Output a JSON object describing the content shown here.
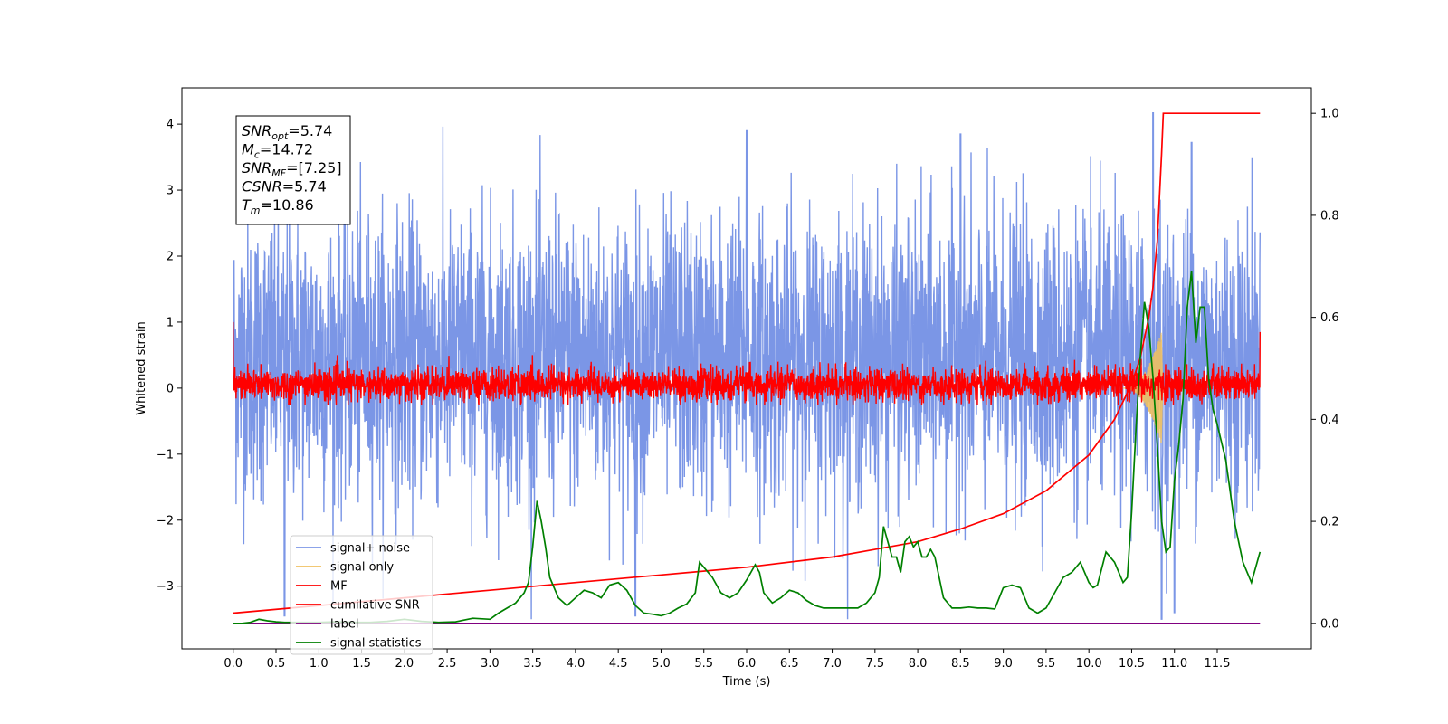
{
  "chart_data": {
    "type": "line",
    "title": "",
    "xlabel": "Time (s)",
    "ylabel": "Whitened strain",
    "xlim": [
      -0.6,
      12.6
    ],
    "ylim": [
      -3.95,
      4.55
    ],
    "y2lim": [
      -0.05,
      1.05
    ],
    "x_ticks": [
      0.0,
      0.5,
      1.0,
      1.5,
      2.0,
      2.5,
      3.0,
      3.5,
      4.0,
      4.5,
      5.0,
      5.5,
      6.0,
      6.5,
      7.0,
      7.5,
      8.0,
      8.5,
      9.0,
      9.5,
      10.0,
      10.5,
      11.0,
      11.5
    ],
    "x_tick_labels": [
      "0.0",
      "0.5",
      "1.0",
      "1.5",
      "2.0",
      "2.5",
      "3.0",
      "3.5",
      "4.0",
      "4.5",
      "5.0",
      "5.5",
      "6.0",
      "6.5",
      "7.0",
      "7.5",
      "8.0",
      "8.5",
      "9.0",
      "9.5",
      "10.0",
      "10.5",
      "11.0",
      "11.5"
    ],
    "y_ticks": [
      -3,
      -2,
      -1,
      0,
      1,
      2,
      3,
      4
    ],
    "y_tick_labels": [
      "−3",
      "−2",
      "−1",
      "0",
      "1",
      "2",
      "3",
      "4"
    ],
    "y2_ticks": [
      0.0,
      0.2,
      0.4,
      0.6,
      0.8,
      1.0
    ],
    "y2_tick_labels": [
      "0.0",
      "0.2",
      "0.4",
      "0.6",
      "0.8",
      "1.0"
    ],
    "grid": false,
    "legend_position": "lower-left",
    "info_box": {
      "lines": [
        {
          "sym": "SNR",
          "sub": "opt",
          "val": "=5.74"
        },
        {
          "sym": "M",
          "sub": "c",
          "val": "=14.72"
        },
        {
          "sym": "SNR",
          "sub": "MF",
          "val": "=[7.25]"
        },
        {
          "sym": "CSNR",
          "sub": "",
          "val": "=5.74"
        },
        {
          "sym": "T",
          "sub": "m",
          "val": "=10.86"
        }
      ]
    },
    "series": [
      {
        "name": "signal+ noise",
        "color": "#7b96e6",
        "axis": "left",
        "style": "noise",
        "x_range": [
          0.0,
          12.0
        ],
        "amplitude_envelope": [
          -3.5,
          4.17
        ],
        "typical_range": [
          -1.5,
          2.4
        ],
        "peaks": [
          [
            6.0,
            3.9
          ],
          [
            8.5,
            3.85
          ],
          [
            10.75,
            4.17
          ],
          [
            11.2,
            3.72
          ],
          [
            4.7,
            -3.45
          ],
          [
            10.85,
            -3.5
          ],
          [
            11.0,
            -3.4
          ],
          [
            0.6,
            -3.45
          ]
        ]
      },
      {
        "name": "signal only",
        "color": "#f0c060",
        "axis": "left",
        "style": "chirp",
        "x_range": [
          10.4,
          10.87
        ],
        "peak_amplitude": 0.95
      },
      {
        "name": "MF",
        "color": "#ff0000",
        "axis": "left",
        "style": "noise",
        "x_range": [
          0.0,
          12.0
        ],
        "typical_range": [
          -0.2,
          0.3
        ],
        "start_value": 1.0,
        "end_value": 0.85
      },
      {
        "name": "cumilative SNR",
        "color": "#ff0000",
        "axis": "right",
        "style": "line",
        "x": [
          0.0,
          1.0,
          2.0,
          3.0,
          4.0,
          5.0,
          6.0,
          7.0,
          7.5,
          8.0,
          8.5,
          9.0,
          9.5,
          10.0,
          10.3,
          10.5,
          10.6,
          10.7,
          10.75,
          10.8,
          10.85,
          10.87,
          10.9,
          12.0
        ],
        "values": [
          0.02,
          0.035,
          0.05,
          0.065,
          0.08,
          0.095,
          0.11,
          0.13,
          0.145,
          0.16,
          0.185,
          0.215,
          0.26,
          0.33,
          0.4,
          0.47,
          0.52,
          0.6,
          0.66,
          0.75,
          0.92,
          1.0,
          1.0,
          1.0
        ]
      },
      {
        "name": "label",
        "color": "#800080",
        "axis": "right",
        "style": "line",
        "x": [
          0.0,
          12.0
        ],
        "values": [
          0.0,
          0.0
        ]
      },
      {
        "name": "signal statistics",
        "color": "#008000",
        "axis": "right",
        "style": "line",
        "x": [
          0.0,
          0.1,
          0.2,
          0.3,
          0.4,
          0.5,
          0.6,
          0.8,
          1.0,
          1.2,
          1.4,
          1.6,
          1.8,
          2.0,
          2.2,
          2.4,
          2.6,
          2.8,
          3.0,
          3.1,
          3.2,
          3.3,
          3.4,
          3.45,
          3.5,
          3.55,
          3.6,
          3.65,
          3.7,
          3.8,
          3.9,
          4.0,
          4.1,
          4.2,
          4.3,
          4.4,
          4.5,
          4.6,
          4.7,
          4.8,
          4.9,
          5.0,
          5.1,
          5.2,
          5.3,
          5.4,
          5.45,
          5.5,
          5.6,
          5.7,
          5.8,
          5.9,
          6.0,
          6.05,
          6.1,
          6.15,
          6.2,
          6.3,
          6.4,
          6.5,
          6.6,
          6.7,
          6.8,
          6.9,
          7.0,
          7.1,
          7.2,
          7.3,
          7.4,
          7.5,
          7.55,
          7.6,
          7.65,
          7.7,
          7.75,
          7.8,
          7.85,
          7.9,
          7.95,
          8.0,
          8.05,
          8.1,
          8.15,
          8.2,
          8.3,
          8.4,
          8.5,
          8.6,
          8.7,
          8.8,
          8.9,
          9.0,
          9.1,
          9.2,
          9.3,
          9.4,
          9.5,
          9.6,
          9.7,
          9.8,
          9.9,
          10.0,
          10.05,
          10.1,
          10.2,
          10.3,
          10.4,
          10.45,
          10.5,
          10.55,
          10.6,
          10.65,
          10.7,
          10.75,
          10.8,
          10.85,
          10.9,
          10.95,
          11.0,
          11.05,
          11.1,
          11.15,
          11.2,
          11.25,
          11.3,
          11.35,
          11.4,
          11.45,
          11.5,
          11.6,
          11.7,
          11.8,
          11.9,
          12.0
        ],
        "values": [
          0.0,
          0.0,
          0.002,
          0.008,
          0.005,
          0.003,
          0.002,
          0.002,
          0.002,
          0.003,
          0.002,
          0.002,
          0.004,
          0.008,
          0.004,
          0.002,
          0.003,
          0.01,
          0.008,
          0.02,
          0.03,
          0.04,
          0.06,
          0.08,
          0.15,
          0.24,
          0.2,
          0.15,
          0.09,
          0.05,
          0.035,
          0.05,
          0.065,
          0.06,
          0.05,
          0.075,
          0.08,
          0.065,
          0.035,
          0.02,
          0.018,
          0.015,
          0.02,
          0.03,
          0.038,
          0.06,
          0.12,
          0.11,
          0.09,
          0.06,
          0.05,
          0.06,
          0.085,
          0.1,
          0.115,
          0.1,
          0.06,
          0.04,
          0.05,
          0.065,
          0.06,
          0.045,
          0.035,
          0.03,
          0.03,
          0.03,
          0.03,
          0.03,
          0.04,
          0.06,
          0.09,
          0.19,
          0.16,
          0.13,
          0.13,
          0.1,
          0.16,
          0.17,
          0.15,
          0.16,
          0.13,
          0.13,
          0.145,
          0.13,
          0.05,
          0.03,
          0.03,
          0.032,
          0.03,
          0.03,
          0.028,
          0.07,
          0.075,
          0.07,
          0.03,
          0.02,
          0.03,
          0.06,
          0.09,
          0.1,
          0.12,
          0.08,
          0.07,
          0.075,
          0.14,
          0.12,
          0.08,
          0.09,
          0.22,
          0.38,
          0.52,
          0.63,
          0.58,
          0.48,
          0.35,
          0.2,
          0.14,
          0.15,
          0.28,
          0.35,
          0.44,
          0.62,
          0.69,
          0.55,
          0.62,
          0.62,
          0.48,
          0.42,
          0.39,
          0.32,
          0.2,
          0.12,
          0.08,
          0.14
        ]
      }
    ]
  }
}
